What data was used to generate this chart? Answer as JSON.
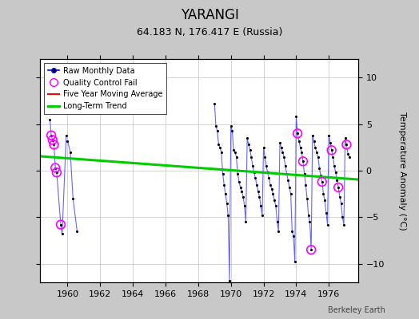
{
  "title": "YARANGI",
  "subtitle": "64.183 N, 176.417 E (Russia)",
  "ylabel": "Temperature Anomaly (°C)",
  "watermark": "Berkeley Earth",
  "xlim": [
    1958.3,
    1977.8
  ],
  "ylim": [
    -12,
    12
  ],
  "yticks": [
    -10,
    -5,
    0,
    5,
    10
  ],
  "xticks": [
    1960,
    1962,
    1964,
    1966,
    1968,
    1970,
    1972,
    1974,
    1976
  ],
  "bg_color": "#c8c8c8",
  "plot_bg_color": "#ffffff",
  "raw_data": [
    [
      1958.917,
      5.5
    ],
    [
      1959.0,
      3.8
    ],
    [
      1959.083,
      3.3
    ],
    [
      1959.167,
      2.8
    ],
    [
      1959.25,
      0.3
    ],
    [
      1959.333,
      -0.2
    ],
    [
      1959.583,
      -5.8
    ],
    [
      1959.667,
      -6.8
    ],
    [
      1959.917,
      3.8
    ],
    [
      1960.0,
      3.2
    ],
    [
      1960.167,
      2.0
    ],
    [
      1960.333,
      -3.0
    ],
    [
      1960.583,
      -6.5
    ],
    [
      1969.0,
      7.2
    ],
    [
      1969.083,
      4.8
    ],
    [
      1969.167,
      4.3
    ],
    [
      1969.25,
      2.8
    ],
    [
      1969.333,
      2.5
    ],
    [
      1969.417,
      2.0
    ],
    [
      1969.5,
      -0.3
    ],
    [
      1969.583,
      -1.5
    ],
    [
      1969.667,
      -2.5
    ],
    [
      1969.75,
      -3.5
    ],
    [
      1969.833,
      -4.8
    ],
    [
      1969.917,
      -11.8
    ],
    [
      1970.0,
      4.8
    ],
    [
      1970.083,
      4.3
    ],
    [
      1970.167,
      2.2
    ],
    [
      1970.25,
      2.0
    ],
    [
      1970.333,
      1.5
    ],
    [
      1970.417,
      -0.3
    ],
    [
      1970.5,
      -1.2
    ],
    [
      1970.583,
      -1.8
    ],
    [
      1970.667,
      -2.2
    ],
    [
      1970.75,
      -2.8
    ],
    [
      1970.833,
      -3.8
    ],
    [
      1970.917,
      -5.5
    ],
    [
      1971.0,
      3.5
    ],
    [
      1971.083,
      2.8
    ],
    [
      1971.167,
      2.2
    ],
    [
      1971.25,
      1.5
    ],
    [
      1971.333,
      0.5
    ],
    [
      1971.417,
      -0.2
    ],
    [
      1971.5,
      -0.8
    ],
    [
      1971.583,
      -1.5
    ],
    [
      1971.667,
      -2.2
    ],
    [
      1971.75,
      -2.8
    ],
    [
      1971.833,
      -3.8
    ],
    [
      1971.917,
      -4.8
    ],
    [
      1972.0,
      2.5
    ],
    [
      1972.083,
      1.5
    ],
    [
      1972.167,
      0.5
    ],
    [
      1972.25,
      -0.2
    ],
    [
      1972.333,
      -0.8
    ],
    [
      1972.417,
      -1.5
    ],
    [
      1972.5,
      -2.0
    ],
    [
      1972.583,
      -2.5
    ],
    [
      1972.667,
      -3.2
    ],
    [
      1972.75,
      -3.8
    ],
    [
      1972.833,
      -5.5
    ],
    [
      1972.917,
      -6.5
    ],
    [
      1973.0,
      3.0
    ],
    [
      1973.083,
      2.5
    ],
    [
      1973.167,
      2.0
    ],
    [
      1973.25,
      1.5
    ],
    [
      1973.333,
      0.5
    ],
    [
      1973.417,
      -0.3
    ],
    [
      1973.5,
      -1.0
    ],
    [
      1973.583,
      -1.8
    ],
    [
      1973.667,
      -2.5
    ],
    [
      1973.75,
      -6.5
    ],
    [
      1973.833,
      -7.0
    ],
    [
      1973.917,
      -9.8
    ],
    [
      1974.0,
      5.8
    ],
    [
      1974.083,
      4.0
    ],
    [
      1974.167,
      3.2
    ],
    [
      1974.25,
      2.5
    ],
    [
      1974.333,
      2.0
    ],
    [
      1974.417,
      1.0
    ],
    [
      1974.5,
      -0.3
    ],
    [
      1974.583,
      -1.5
    ],
    [
      1974.667,
      -3.0
    ],
    [
      1974.75,
      -4.8
    ],
    [
      1974.833,
      -5.5
    ],
    [
      1974.917,
      -8.5
    ],
    [
      1975.0,
      3.8
    ],
    [
      1975.083,
      3.2
    ],
    [
      1975.167,
      2.5
    ],
    [
      1975.25,
      2.0
    ],
    [
      1975.333,
      1.5
    ],
    [
      1975.417,
      0.3
    ],
    [
      1975.5,
      -0.5
    ],
    [
      1975.583,
      -1.2
    ],
    [
      1975.667,
      -2.5
    ],
    [
      1975.75,
      -3.2
    ],
    [
      1975.833,
      -4.5
    ],
    [
      1975.917,
      -5.8
    ],
    [
      1976.0,
      3.8
    ],
    [
      1976.083,
      3.0
    ],
    [
      1976.167,
      2.2
    ],
    [
      1976.25,
      1.5
    ],
    [
      1976.333,
      0.5
    ],
    [
      1976.417,
      -0.2
    ],
    [
      1976.5,
      -1.0
    ],
    [
      1976.583,
      -1.8
    ],
    [
      1976.667,
      -2.8
    ],
    [
      1976.75,
      -3.5
    ],
    [
      1976.833,
      -5.0
    ],
    [
      1976.917,
      -5.8
    ],
    [
      1977.0,
      3.5
    ],
    [
      1977.083,
      2.8
    ],
    [
      1977.167,
      1.8
    ],
    [
      1977.25,
      1.5
    ]
  ],
  "qc_fail_points": [
    [
      1959.0,
      3.8
    ],
    [
      1959.083,
      3.3
    ],
    [
      1959.167,
      2.8
    ],
    [
      1959.25,
      0.3
    ],
    [
      1959.333,
      -0.2
    ],
    [
      1959.583,
      -5.8
    ],
    [
      1974.083,
      4.0
    ],
    [
      1974.417,
      1.0
    ],
    [
      1974.917,
      -8.5
    ],
    [
      1975.583,
      -1.2
    ],
    [
      1976.167,
      2.2
    ],
    [
      1976.583,
      -1.8
    ],
    [
      1977.083,
      2.8
    ]
  ],
  "trend_x": [
    1958.3,
    1977.8
  ],
  "trend_y": [
    1.55,
    -0.95
  ],
  "segments": [
    [
      [
        1958.917,
        1959.0,
        1959.083,
        1959.167,
        1959.25,
        1959.333,
        1959.583,
        1959.667,
        1959.917
      ],
      [
        5.5,
        3.8,
        3.3,
        2.8,
        0.3,
        -0.2,
        -5.8,
        -6.8,
        3.8
      ]
    ],
    [
      [
        1960.0,
        1960.167,
        1960.333,
        1960.583
      ],
      [
        3.2,
        2.0,
        -3.0,
        -6.5
      ]
    ],
    [
      [
        1969.0,
        1969.083,
        1969.167,
        1969.25,
        1969.333,
        1969.417,
        1969.5,
        1969.583,
        1969.667,
        1969.75,
        1969.833,
        1969.917,
        1970.0,
        1970.083,
        1970.167,
        1970.25,
        1970.333,
        1970.417,
        1970.5,
        1970.583,
        1970.667,
        1970.75,
        1970.833,
        1970.917,
        1971.0,
        1971.083,
        1971.167,
        1971.25,
        1971.333,
        1971.417,
        1971.5,
        1971.583,
        1971.667,
        1971.75,
        1971.833,
        1971.917,
        1972.0,
        1972.083,
        1972.167,
        1972.25,
        1972.333,
        1972.417,
        1972.5,
        1972.583,
        1972.667,
        1972.75,
        1972.833,
        1972.917,
        1973.0,
        1973.083,
        1973.167,
        1973.25,
        1973.333,
        1973.417,
        1973.5,
        1973.583,
        1973.667,
        1973.75,
        1973.833,
        1973.917,
        1974.0,
        1974.083,
        1974.167,
        1974.25,
        1974.333,
        1974.417,
        1974.5,
        1974.583,
        1974.667,
        1974.75,
        1974.833,
        1974.917,
        1975.0,
        1975.083,
        1975.167,
        1975.25,
        1975.333,
        1975.417,
        1975.5,
        1975.583,
        1975.667,
        1975.75,
        1975.833,
        1975.917,
        1976.0,
        1976.083,
        1976.167,
        1976.25,
        1976.333,
        1976.417,
        1976.5,
        1976.583,
        1976.667,
        1976.75,
        1976.833,
        1976.917,
        1977.0,
        1977.083,
        1977.167,
        1977.25
      ],
      [
        7.2,
        4.8,
        4.3,
        2.8,
        2.5,
        2.0,
        -0.3,
        -1.5,
        -2.5,
        -3.5,
        -4.8,
        -11.8,
        4.8,
        4.3,
        2.2,
        2.0,
        1.5,
        -0.3,
        -1.2,
        -1.8,
        -2.2,
        -2.8,
        -3.8,
        -5.5,
        3.5,
        2.8,
        2.2,
        1.5,
        0.5,
        -0.2,
        -0.8,
        -1.5,
        -2.2,
        -2.8,
        -3.8,
        -4.8,
        2.5,
        1.5,
        0.5,
        -0.2,
        -0.8,
        -1.5,
        -2.0,
        -2.5,
        -3.2,
        -3.8,
        -5.5,
        -6.5,
        3.0,
        2.5,
        2.0,
        1.5,
        0.5,
        -0.3,
        -1.0,
        -1.8,
        -2.5,
        -6.5,
        -7.0,
        -9.8,
        5.8,
        4.0,
        3.2,
        2.5,
        2.0,
        1.0,
        -0.3,
        -1.5,
        -3.0,
        -4.8,
        -5.5,
        -8.5,
        3.8,
        3.2,
        2.5,
        2.0,
        1.5,
        0.3,
        -0.5,
        -1.2,
        -2.5,
        -3.2,
        -4.5,
        -5.8,
        3.8,
        3.0,
        2.2,
        1.5,
        0.5,
        -0.2,
        -1.0,
        -1.8,
        -2.8,
        -3.5,
        -5.0,
        -5.8,
        3.5,
        2.8,
        1.8,
        1.5
      ]
    ]
  ]
}
